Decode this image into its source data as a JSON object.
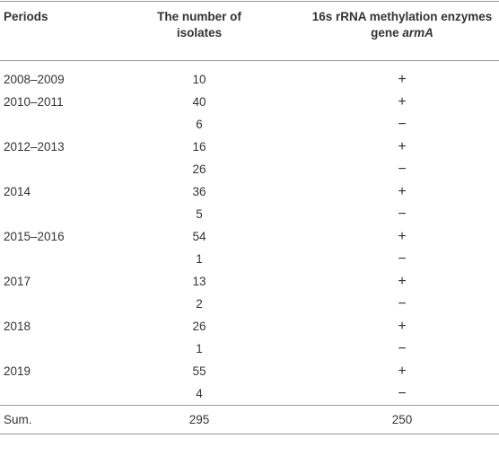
{
  "table": {
    "header": [
      "Periods",
      "The number of isolates",
      [
        "16s rRNA methylation enzymes gene",
        "armA"
      ]
    ],
    "rows": [
      [
        "2008–2009",
        10,
        "+"
      ],
      [
        "2010–2011",
        40,
        "+"
      ],
      [
        null,
        6,
        "−"
      ],
      [
        "2012–2013",
        16,
        "+"
      ],
      [
        null,
        26,
        "−"
      ],
      [
        "2014",
        36,
        "+"
      ],
      [
        null,
        5,
        "−"
      ],
      [
        "2015–2016",
        54,
        "+"
      ],
      [
        null,
        1,
        "−"
      ],
      [
        "2017",
        13,
        "+"
      ],
      [
        null,
        2,
        "−"
      ],
      [
        "2018",
        26,
        "+"
      ],
      [
        null,
        1,
        "−"
      ],
      [
        "2019",
        55,
        "+"
      ],
      [
        null,
        4,
        "−"
      ]
    ],
    "total": [
      "Sum.",
      295,
      250
    ]
  }
}
